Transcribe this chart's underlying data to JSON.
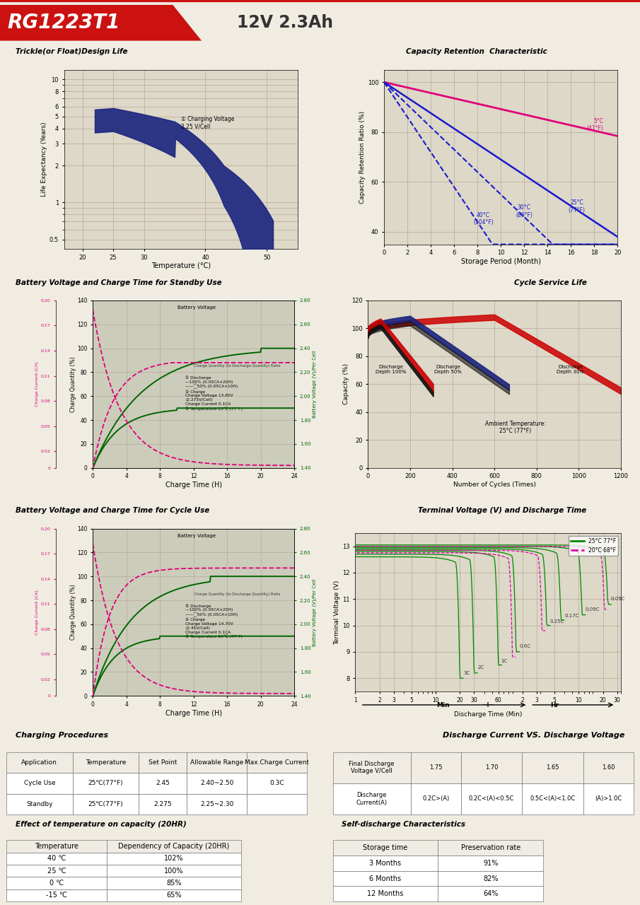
{
  "title_model": "RG1223T1",
  "title_spec": "12V 2.3Ah",
  "bg_color": "#f0ece2",
  "header_red": "#cc1111",
  "grid_color": "#b8a898",
  "plot_bg": "#ddd8c8",
  "white_plot_bg": "#e8e4d8",
  "chart1_title": "Trickle(or Float)Design Life",
  "chart1_xlabel": "Temperature (°C)",
  "chart1_ylabel": "Life Expectancy (Years)",
  "chart1_annotation": "① Charging Voltage\n2.25 V/Cell",
  "chart2_title": "Capacity Retention  Characteristic",
  "chart2_xlabel": "Storage Period (Month)",
  "chart2_ylabel": "Capacity Retention Ratio (%)",
  "chart3_title": "Battery Voltage and Charge Time for Standby Use",
  "chart3_xlabel": "Charge Time (H)",
  "chart3_note": "① Discharge\n—100% (0.05CA×20H)\n———⁐50% (0.05CA×10H)\n② Charge\nCharge Voltage 13.65V\n(2.275V/Cell)\nCharge Current 0.1CA\n③ Temperature 25℃ (77°F)",
  "chart4_title": "Cycle Service Life",
  "chart4_xlabel": "Number of Cycles (Times)",
  "chart4_ylabel": "Capacity (%)",
  "chart5_title": "Battery Voltage and Charge Time for Cycle Use",
  "chart5_xlabel": "Charge Time (H)",
  "chart5_note": "① Discharge\n—100% (0.05CA×20H)\n———⁐50% (0.05CA×10H)\n② Charge\nCharge Voltage 14.70V\n(2.45V/Cell)\nCharge Current 0.1CA\n③ Temperature 25℃ (77°F)",
  "chart6_title": "Terminal Voltage (V) and Discharge Time",
  "chart6_xlabel": "Discharge Time (Min)",
  "chart6_ylabel": "Terminal Voltage (V)",
  "charging_proc_title": "Charging Procedures",
  "discharge_vs_title": "Discharge Current VS. Discharge Voltage",
  "temp_cap_title": "Effect of temperature on capacity (20HR)",
  "self_discharge_title": "Self-discharge Characteristics"
}
